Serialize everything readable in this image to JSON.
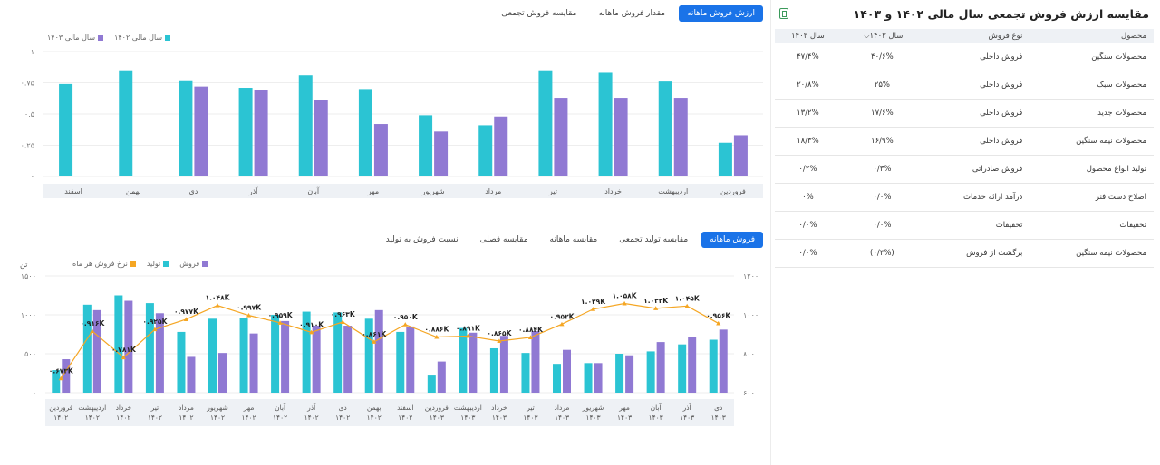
{
  "top_chart": {
    "tabs": [
      {
        "label": "ارزش فروش ماهانه",
        "active": true
      },
      {
        "label": "مقدار فروش ماهانه",
        "active": false
      },
      {
        "label": "مقایسه فروش تجمعی",
        "active": false
      }
    ],
    "legend": [
      {
        "label": "سال مالی ۱۴۰۲",
        "color": "#2bc4d3"
      },
      {
        "label": "سال مالی ۱۴۰۳",
        "color": "#9079d3"
      }
    ]
  },
  "bottom_chart": {
    "tabs": [
      {
        "label": "فروش ماهانه",
        "active": true
      },
      {
        "label": "مقایسه تولید تجمعی",
        "active": false
      },
      {
        "label": "مقایسه ماهانه",
        "active": false
      },
      {
        "label": "مقایسه فصلی",
        "active": false
      },
      {
        "label": "نسبت فروش به تولید",
        "active": false
      }
    ],
    "legend": [
      {
        "label": "فروش",
        "color": "#9079d3"
      },
      {
        "label": "تولید",
        "color": "#2bc4d3"
      },
      {
        "label": "نرخ فروش هر ماه",
        "color": "#f5a623"
      }
    ],
    "left_axis_unit": "تن"
  },
  "right_panel": {
    "title": "مقایسه ارزش فروش تجمعی سال مالی ۱۴۰۲ و ۱۴۰۳",
    "export_icon": "excel-export-icon",
    "columns": {
      "product": "محصول",
      "type": "نوع فروش",
      "y1403": "سال ۱۴۰۳",
      "y1402": "سال ۱۴۰۲"
    },
    "rows": [
      {
        "product": "محصولات سنگین",
        "type": "فروش داخلی",
        "y1403": "۴۰/۶%",
        "y1402": "۴۷/۴%"
      },
      {
        "product": "محصولات سبک",
        "type": "فروش داخلی",
        "y1403": "۲۵%",
        "y1402": "۲۰/۸%"
      },
      {
        "product": "محصولات جدید",
        "type": "فروش داخلی",
        "y1403": "۱۷/۶%",
        "y1402": "۱۳/۲%"
      },
      {
        "product": "محصولات نیمه سنگین",
        "type": "فروش داخلی",
        "y1403": "۱۶/۹%",
        "y1402": "۱۸/۳%"
      },
      {
        "product": "تولید انواع محصول",
        "type": "فروش صادراتی",
        "y1403": "۰/۳%",
        "y1402": "۰/۲%"
      },
      {
        "product": "اصلاح دست فنر",
        "type": "درآمد ارائه خدمات",
        "y1403": "۰/۰%",
        "y1402": "۰%"
      },
      {
        "product": "تخفیفات",
        "type": "تخفیفات",
        "y1403": "۰/۰%",
        "y1402": "۰/۰%"
      },
      {
        "product": "محصولات نیمه سنگین",
        "type": "برگشت از فروش",
        "y1403": "(۰/۳%)",
        "y1402": "۰/۰%"
      }
    ]
  },
  "chart_data": [
    {
      "type": "bar",
      "categories": [
        "فروردین",
        "اردیبهشت",
        "خرداد",
        "تیر",
        "مرداد",
        "شهریور",
        "مهر",
        "آبان",
        "آذر",
        "دی",
        "بهمن",
        "اسفند"
      ],
      "series": [
        {
          "name": "سال مالی ۱۴۰۲",
          "color": "#2bc4d3",
          "values": [
            0.27,
            0.76,
            0.83,
            0.85,
            0.41,
            0.49,
            0.7,
            0.81,
            0.71,
            0.77,
            0.85,
            0.74
          ]
        },
        {
          "name": "سال مالی ۱۴۰۳",
          "color": "#9079d3",
          "values": [
            0.33,
            0.63,
            0.63,
            0.63,
            0.48,
            0.36,
            0.42,
            0.61,
            0.69,
            0.72,
            0,
            0
          ]
        }
      ],
      "yticks": [
        "۰",
        "۰.۲۵",
        "۰.۵",
        "۰.۷۵",
        "۱"
      ],
      "ylim": [
        0,
        1
      ]
    },
    {
      "type": "bar",
      "categories": [
        [
          "فروردین",
          "۱۴۰۲"
        ],
        [
          "اردیبهشت",
          "۱۴۰۲"
        ],
        [
          "خرداد",
          "۱۴۰۲"
        ],
        [
          "تیر",
          "۱۴۰۲"
        ],
        [
          "مرداد",
          "۱۴۰۲"
        ],
        [
          "شهریور",
          "۱۴۰۲"
        ],
        [
          "مهر",
          "۱۴۰۲"
        ],
        [
          "آبان",
          "۱۴۰۲"
        ],
        [
          "آذر",
          "۱۴۰۲"
        ],
        [
          "دی",
          "۱۴۰۲"
        ],
        [
          "بهمن",
          "۱۴۰۲"
        ],
        [
          "اسفند",
          "۱۴۰۲"
        ],
        [
          "فروردین",
          "۱۴۰۳"
        ],
        [
          "اردیبهشت",
          "۱۴۰۳"
        ],
        [
          "خرداد",
          "۱۴۰۳"
        ],
        [
          "تیر",
          "۱۴۰۳"
        ],
        [
          "مرداد",
          "۱۴۰۳"
        ],
        [
          "شهریور",
          "۱۴۰۳"
        ],
        [
          "مهر",
          "۱۴۰۳"
        ],
        [
          "آبان",
          "۱۴۰۳"
        ],
        [
          "آذر",
          "۱۴۰۳"
        ],
        [
          "دی",
          "۱۴۰۳"
        ]
      ],
      "series": [
        {
          "name": "تولید",
          "color": "#2bc4d3",
          "axis": "left",
          "values": [
            290,
            1130,
            1250,
            1150,
            780,
            950,
            960,
            1000,
            1040,
            1030,
            950,
            780,
            220,
            830,
            570,
            510,
            370,
            380,
            500,
            530,
            620,
            680
          ]
        },
        {
          "name": "فروش",
          "color": "#9079d3",
          "axis": "left",
          "values": [
            430,
            1060,
            1180,
            1020,
            460,
            510,
            760,
            920,
            860,
            860,
            1060,
            850,
            400,
            770,
            730,
            790,
            550,
            380,
            480,
            650,
            710,
            810
          ]
        },
        {
          "name": "نرخ فروش هر ماه",
          "color": "#f5a623",
          "axis": "right",
          "type": "line",
          "values": [
            673,
            916,
            781,
            925,
            977,
            1048,
            997,
            959,
            910,
            963,
            861,
            950,
            886,
            891,
            865,
            884,
            952,
            1029,
            1058,
            1033,
            1045,
            956
          ],
          "labels": [
            "۰.۶۷۳K",
            "۰.۹۱۶K",
            "۰.۷۸۱K",
            "۰.۹۲۵K",
            "۰.۹۷۷K",
            "۱.۰۴۸K",
            "۰.۹۹۷K",
            "۰.۹۵۹K",
            "۰.۹۱۰K",
            "۰.۹۶۳K",
            "۰.۸۶۱K",
            "۰.۹۵۰K",
            "۰.۸۸۶K",
            "۰.۸۹۱K",
            "۰.۸۶۵K",
            "۰.۸۸۴K",
            "۰.۹۵۲K",
            "۱.۰۲۹K",
            "۱.۰۵۸K",
            "۱.۰۳۳K",
            "۱.۰۴۵K",
            "۰.۹۵۶K"
          ]
        }
      ],
      "left_yticks": [
        "۰",
        "۵۰۰",
        "۱۰۰۰",
        "۱۵۰۰"
      ],
      "left_ylim": [
        0,
        1500
      ],
      "right_yticks": [
        "۶۰۰",
        "۸۰۰",
        "۱۰۰۰",
        "۱۲۰۰"
      ],
      "right_ylim": [
        600,
        1200
      ]
    }
  ]
}
